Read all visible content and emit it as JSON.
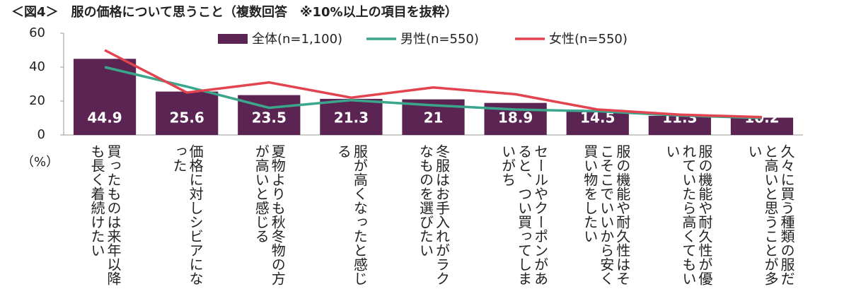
{
  "chart_data": {
    "type": "bar_line",
    "title": "＜図4＞　服の価格について思うこと（複数回答　※10%以上の項目を抜粋）",
    "y_unit_label": "（%）",
    "categories": [
      "買ったものは来年以降も長く着続けたい",
      "価格に対しシビアになった",
      "夏物よりも秋冬物の方が高いと感じる",
      "服が高くなったと感じる",
      "冬服はお手入れがラクなものを選びたい",
      "セールやクーポンがあると、つい買ってしまいがち",
      "服の機能や耐久性はそこそこでいいから安く買い物をしたい",
      "服の機能や耐久性が優れていたら高くてもいい",
      "久々に買う種類の服だと高いと思うことが多い"
    ],
    "series": [
      {
        "name": "全体(n=1,100)",
        "type": "bar",
        "color": "#5b2453",
        "values": [
          44.9,
          25.6,
          23.5,
          21.3,
          21.0,
          18.9,
          14.5,
          11.3,
          10.2
        ]
      },
      {
        "name": "男性(n=550)",
        "type": "line",
        "color": "#3aa68b",
        "values": [
          40,
          28.5,
          16,
          20.5,
          17.5,
          15,
          14,
          11.5,
          10
        ]
      },
      {
        "name": "女性(n=550)",
        "type": "line",
        "color": "#e2434f",
        "values": [
          50,
          25,
          31,
          22,
          28,
          24,
          15,
          12,
          10.5
        ]
      }
    ],
    "ylim": [
      0,
      60
    ],
    "yticks": [
      0,
      20,
      40,
      60
    ],
    "grid": false
  }
}
